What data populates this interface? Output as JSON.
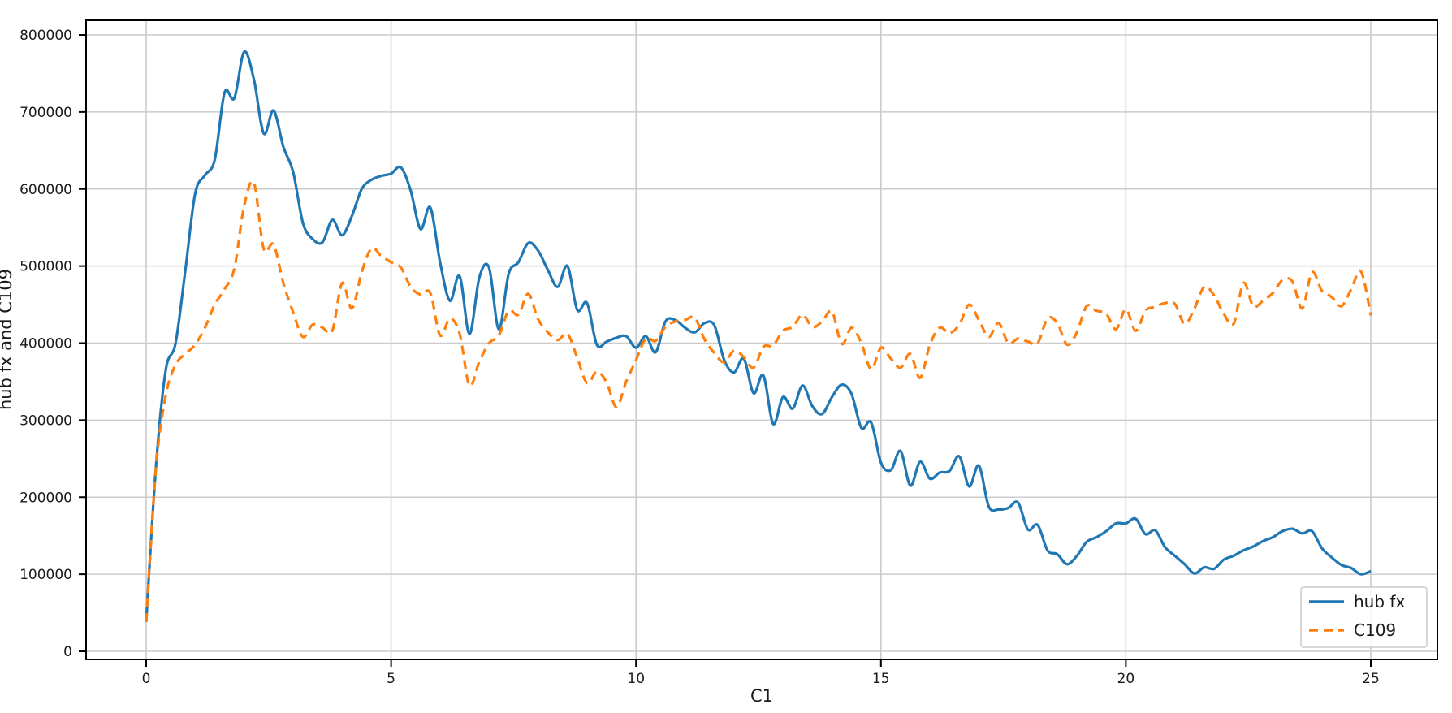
{
  "figure": {
    "xlabel": "C1",
    "ylabel": "hub fx and C109",
    "background_color": "#ffffff",
    "grid_color": "#cccccc",
    "spine_color": "#000000",
    "text_color": "#1a1a1a"
  },
  "legend": {
    "position": "lower right",
    "items": [
      {
        "label": "hub fx",
        "color": "#1f77b4",
        "dash": "solid"
      },
      {
        "label": "C109",
        "color": "#ff7f0e",
        "dash": "dashed"
      }
    ]
  },
  "chart_data": {
    "type": "line",
    "title": "",
    "xlabel": "C1",
    "ylabel": "hub fx and C109",
    "grid": true,
    "legend_position": "lower right",
    "xlim": [
      -1.23,
      26.36
    ],
    "ylim": [
      -10500,
      819000
    ],
    "xticks": [
      0,
      5,
      10,
      15,
      20,
      25
    ],
    "xtick_labels": [
      "0",
      "5",
      "10",
      "15",
      "20",
      "25"
    ],
    "yticks": [
      0,
      100000,
      200000,
      300000,
      400000,
      500000,
      600000,
      700000,
      800000
    ],
    "ytick_labels": [
      "0",
      "100000",
      "200000",
      "300000",
      "400000",
      "500000",
      "600000",
      "700000",
      "800000"
    ],
    "x": [
      0,
      0.2,
      0.4,
      0.6,
      0.8,
      1,
      1.2,
      1.4,
      1.6,
      1.8,
      2,
      2.2,
      2.4,
      2.6,
      2.8,
      3,
      3.2,
      3.4,
      3.6,
      3.8,
      4,
      4.2,
      4.4,
      4.6,
      4.8,
      5,
      5.2,
      5.4,
      5.6,
      5.8,
      6,
      6.2,
      6.4,
      6.6,
      6.8,
      7,
      7.2,
      7.4,
      7.6,
      7.8,
      8,
      8.2,
      8.4,
      8.6,
      8.8,
      9,
      9.2,
      9.4,
      9.6,
      9.8,
      10,
      10.2,
      10.4,
      10.6,
      10.8,
      11,
      11.2,
      11.4,
      11.6,
      11.8,
      12,
      12.2,
      12.4,
      12.6,
      12.8,
      13,
      13.2,
      13.4,
      13.6,
      13.8,
      14,
      14.2,
      14.4,
      14.6,
      14.8,
      15,
      15.2,
      15.4,
      15.6,
      15.8,
      16,
      16.2,
      16.4,
      16.6,
      16.8,
      17,
      17.2,
      17.4,
      17.6,
      17.8,
      18,
      18.2,
      18.4,
      18.6,
      18.8,
      19,
      19.2,
      19.4,
      19.6,
      19.8,
      20,
      20.2,
      20.4,
      20.6,
      20.8,
      21,
      21.2,
      21.4,
      21.6,
      21.8,
      22,
      22.2,
      22.4,
      22.6,
      22.8,
      23,
      23.2,
      23.4,
      23.6,
      23.8,
      24,
      24.2,
      24.4,
      24.6,
      24.8,
      25
    ],
    "series": [
      {
        "name": "hub fx",
        "color": "#1f77b4",
        "dash": "solid",
        "values": [
          38000,
          240000,
          365000,
          400000,
          495000,
          594000,
          618000,
          638000,
          725000,
          718000,
          778000,
          742000,
          672000,
          702000,
          655000,
          622000,
          556000,
          535000,
          531000,
          560000,
          540000,
          565000,
          600000,
          612000,
          617000,
          620000,
          628000,
          598000,
          548000,
          576000,
          505000,
          455000,
          487000,
          412000,
          485000,
          498000,
          418000,
          490000,
          505000,
          530000,
          520000,
          495000,
          473000,
          500000,
          443000,
          452000,
          398000,
          402000,
          407000,
          409000,
          394000,
          409000,
          388000,
          428000,
          430000,
          420000,
          414000,
          426000,
          423000,
          378000,
          362000,
          380000,
          335000,
          358000,
          295000,
          330000,
          315000,
          345000,
          318000,
          308000,
          330000,
          346000,
          334000,
          290000,
          297000,
          245000,
          235000,
          260000,
          215000,
          246000,
          224000,
          232000,
          234000,
          253000,
          214000,
          241000,
          188000,
          184000,
          186000,
          193000,
          158000,
          164000,
          131000,
          126000,
          113000,
          124000,
          142000,
          148000,
          156000,
          166000,
          166000,
          172000,
          152000,
          157000,
          135000,
          124000,
          113000,
          101000,
          109000,
          107000,
          119000,
          124000,
          131000,
          136000,
          143000,
          148000,
          156000,
          159000,
          153000,
          156000,
          134000,
          122000,
          112000,
          108000,
          100000,
          104000
        ]
      },
      {
        "name": "C109",
        "color": "#ff7f0e",
        "dash": "dashed",
        "values": [
          38000,
          238000,
          332000,
          372000,
          386000,
          398000,
          420000,
          450000,
          470000,
          497000,
          578000,
          608000,
          522000,
          528000,
          478000,
          440000,
          408000,
          424000,
          420000,
          416000,
          478000,
          445000,
          492000,
          523000,
          513000,
          505000,
          498000,
          473000,
          463000,
          465000,
          410000,
          432000,
          412000,
          345000,
          376000,
          400000,
          410000,
          442000,
          437000,
          464000,
          431000,
          414000,
          404000,
          412000,
          381000,
          348000,
          363000,
          349000,
          317000,
          350000,
          378000,
          406000,
          403000,
          421000,
          428000,
          430000,
          433000,
          405000,
          387000,
          375000,
          390000,
          382000,
          368000,
          395000,
          397000,
          416000,
          421000,
          437000,
          421000,
          428000,
          441000,
          399000,
          420000,
          400000,
          366000,
          394000,
          380000,
          368000,
          386000,
          355000,
          398000,
          420000,
          413000,
          424000,
          450000,
          430000,
          408000,
          426000,
          400000,
          406000,
          402000,
          400000,
          432000,
          426000,
          398000,
          414000,
          448000,
          442000,
          438000,
          418000,
          444000,
          416000,
          442000,
          447000,
          452000,
          451000,
          425000,
          445000,
          473000,
          462000,
          438000,
          425000,
          478000,
          448000,
          455000,
          465000,
          482000,
          480000,
          445000,
          492000,
          468000,
          460000,
          448000,
          470000,
          493000,
          436000
        ]
      }
    ]
  }
}
